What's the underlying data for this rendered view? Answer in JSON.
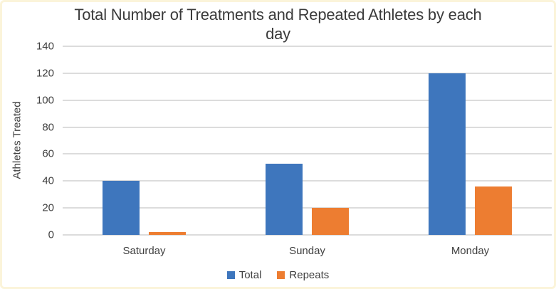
{
  "chart_data": {
    "type": "bar",
    "title": "Total Number of Treatments and Repeated Athletes by each day",
    "ylabel": "Athletes Treated",
    "ylim": [
      0,
      140
    ],
    "yticks": [
      0,
      20,
      40,
      60,
      80,
      100,
      120,
      140
    ],
    "categories": [
      "Saturday",
      "Sunday",
      "Monday"
    ],
    "series": [
      {
        "name": "Total",
        "color": "#3E76BD",
        "values": [
          40,
          53,
          120
        ]
      },
      {
        "name": "Repeats",
        "color": "#ED7D31",
        "values": [
          2,
          20,
          36
        ]
      }
    ],
    "grid": true,
    "legend_position": "bottom"
  },
  "colors": {
    "background": "#FFFFFF",
    "border": "#FBF4DA",
    "gridline": "#DCDCDC",
    "text": "#404040"
  }
}
